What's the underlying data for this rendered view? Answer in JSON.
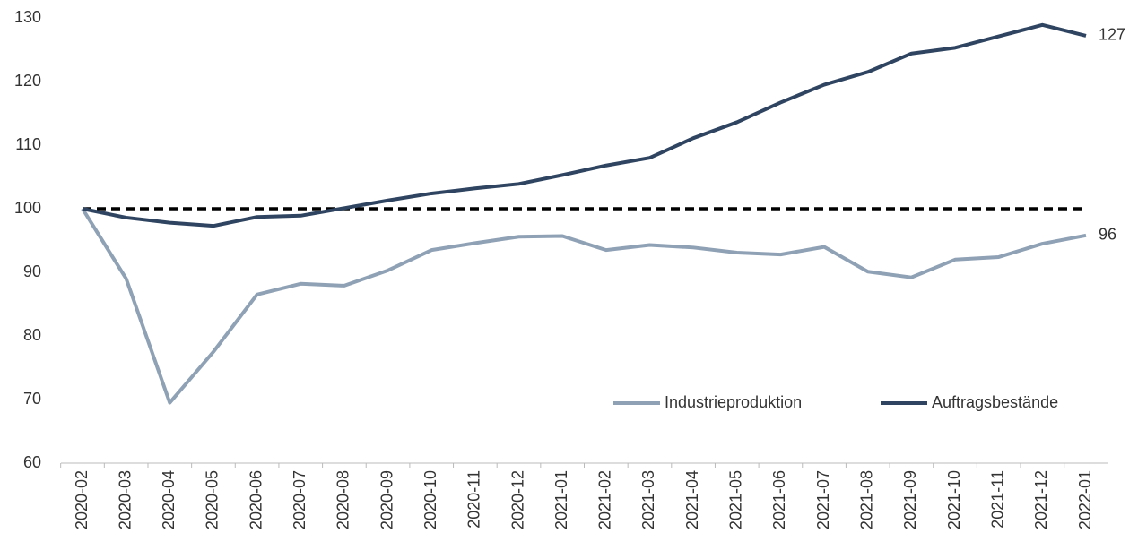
{
  "chart_data": {
    "type": "line",
    "categories": [
      "2020-02",
      "2020-03",
      "2020-04",
      "2020-05",
      "2020-06",
      "2020-07",
      "2020-08",
      "2020-09",
      "2020-10",
      "2020-11",
      "2020-12",
      "2021-01",
      "2021-02",
      "2021-03",
      "2021-04",
      "2021-05",
      "2021-06",
      "2021-07",
      "2021-08",
      "2021-09",
      "2021-10",
      "2021-11",
      "2021-12",
      "2022-01"
    ],
    "series": [
      {
        "name": "Industrieproduktion",
        "color": "#8fa1b5",
        "values": [
          100,
          89,
          69.5,
          77.5,
          86.5,
          88.2,
          87.9,
          90.3,
          93.5,
          94.6,
          95.6,
          95.7,
          93.5,
          94.3,
          93.9,
          93.1,
          92.8,
          94.0,
          90.1,
          89.2,
          92.0,
          92.4,
          94.5,
          95.8
        ],
        "value_labels": [
          null,
          null,
          null,
          null,
          null,
          null,
          null,
          null,
          null,
          null,
          null,
          null,
          null,
          null,
          null,
          null,
          null,
          null,
          null,
          null,
          null,
          null,
          null,
          "96"
        ]
      },
      {
        "name": "Auftragsbestände",
        "color": "#2e4460",
        "values": [
          100,
          98.6,
          97.8,
          97.3,
          98.7,
          98.9,
          100.1,
          101.3,
          102.4,
          103.2,
          103.9,
          105.3,
          106.8,
          108.0,
          111.1,
          113.6,
          116.7,
          119.5,
          121.5,
          124.4,
          125.3,
          127.1,
          128.9,
          127.2
        ],
        "value_labels": [
          null,
          null,
          null,
          null,
          null,
          null,
          null,
          null,
          null,
          null,
          null,
          null,
          null,
          null,
          null,
          null,
          null,
          null,
          null,
          null,
          null,
          null,
          null,
          "127"
        ]
      }
    ],
    "hline": 100,
    "ylim": [
      60,
      130
    ],
    "yticks": [
      60,
      70,
      80,
      90,
      100,
      110,
      120,
      130
    ],
    "grid": false,
    "legend": "lower right"
  }
}
